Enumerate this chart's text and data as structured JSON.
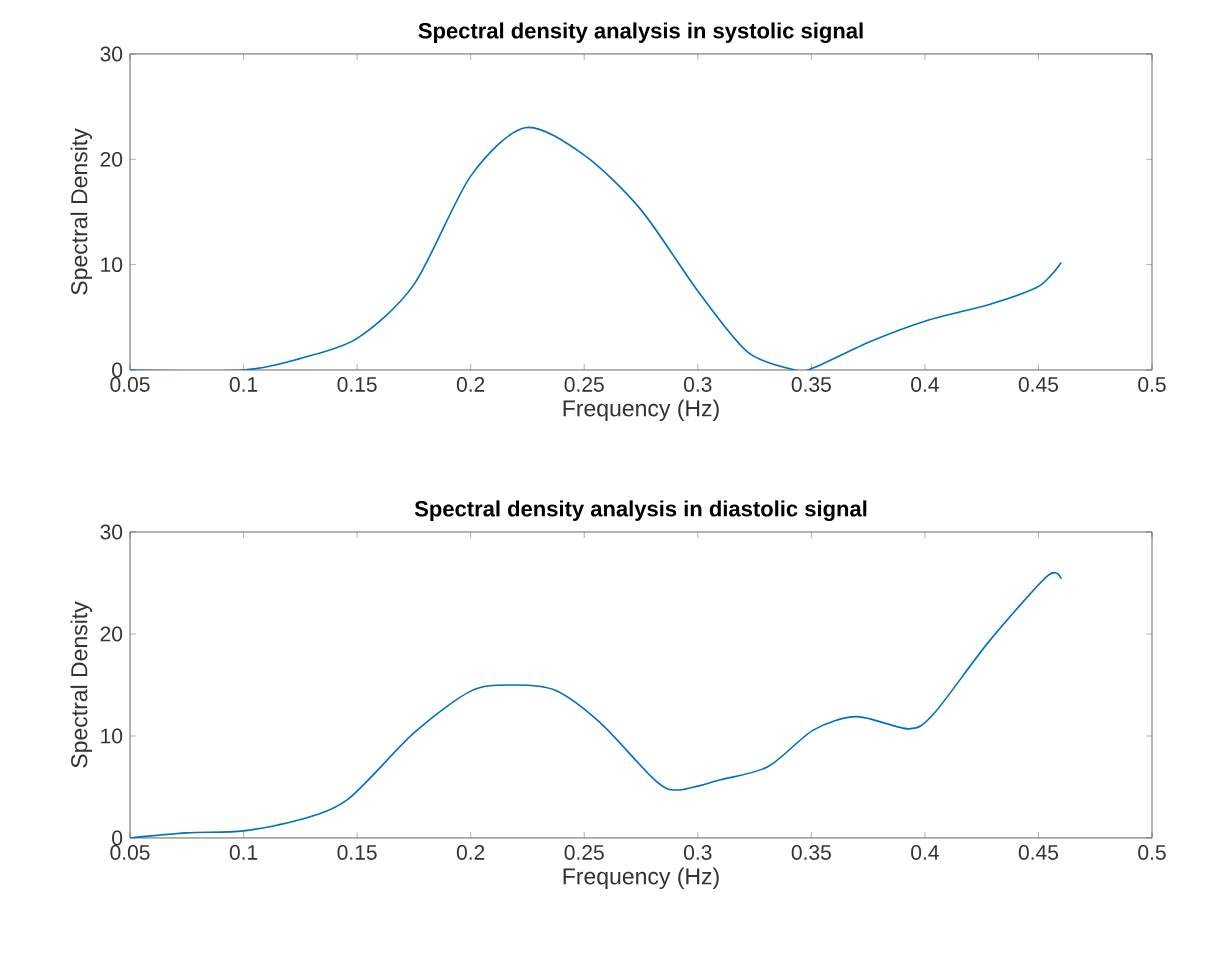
{
  "chart_data": [
    {
      "type": "line",
      "title": "Spectral density analysis in systolic signal",
      "xlabel": "Frequency (Hz)",
      "ylabel": "Spectral Density",
      "color": "#0072bd",
      "x": [
        0.05,
        0.1,
        0.125,
        0.15,
        0.175,
        0.2,
        0.224,
        0.25,
        0.275,
        0.3,
        0.322,
        0.343,
        0.351,
        0.376,
        0.401,
        0.428,
        0.449,
        0.456,
        0.46
      ],
      "values": [
        0,
        0,
        1.1,
        3.0,
        8.1,
        18.4,
        23.0,
        20.4,
        15.2,
        7.5,
        1.7,
        0,
        0.2,
        2.7,
        4.7,
        6.2,
        7.8,
        9.1,
        10.2
      ],
      "xlim": [
        0.05,
        0.5
      ],
      "ylim": [
        0,
        30
      ],
      "xticks": [
        0.05,
        0.1,
        0.15,
        0.2,
        0.25,
        0.3,
        0.35,
        0.4,
        0.45,
        0.5
      ],
      "yticks": [
        0,
        10,
        20,
        30
      ]
    },
    {
      "type": "line",
      "title": "Spectral density analysis in diastolic signal",
      "xlabel": "Frequency (Hz)",
      "ylabel": "Spectral Density",
      "color": "#0072bd",
      "x": [
        0.05,
        0.075,
        0.1,
        0.125,
        0.146,
        0.175,
        0.2,
        0.218,
        0.237,
        0.257,
        0.281,
        0.291,
        0.31,
        0.331,
        0.351,
        0.37,
        0.393,
        0.404,
        0.428,
        0.454,
        0.46
      ],
      "values": [
        0,
        0.5,
        0.7,
        1.8,
        3.8,
        10.3,
        14.4,
        15.0,
        14.5,
        11.3,
        5.7,
        4.7,
        5.7,
        7.0,
        10.6,
        11.9,
        10.7,
        12.2,
        19.2,
        25.7,
        25.4
      ],
      "xlim": [
        0.05,
        0.5
      ],
      "ylim": [
        0,
        30
      ],
      "xticks": [
        0.05,
        0.1,
        0.15,
        0.2,
        0.25,
        0.3,
        0.35,
        0.4,
        0.45,
        0.5
      ],
      "yticks": [
        0,
        10,
        20,
        30
      ]
    }
  ]
}
